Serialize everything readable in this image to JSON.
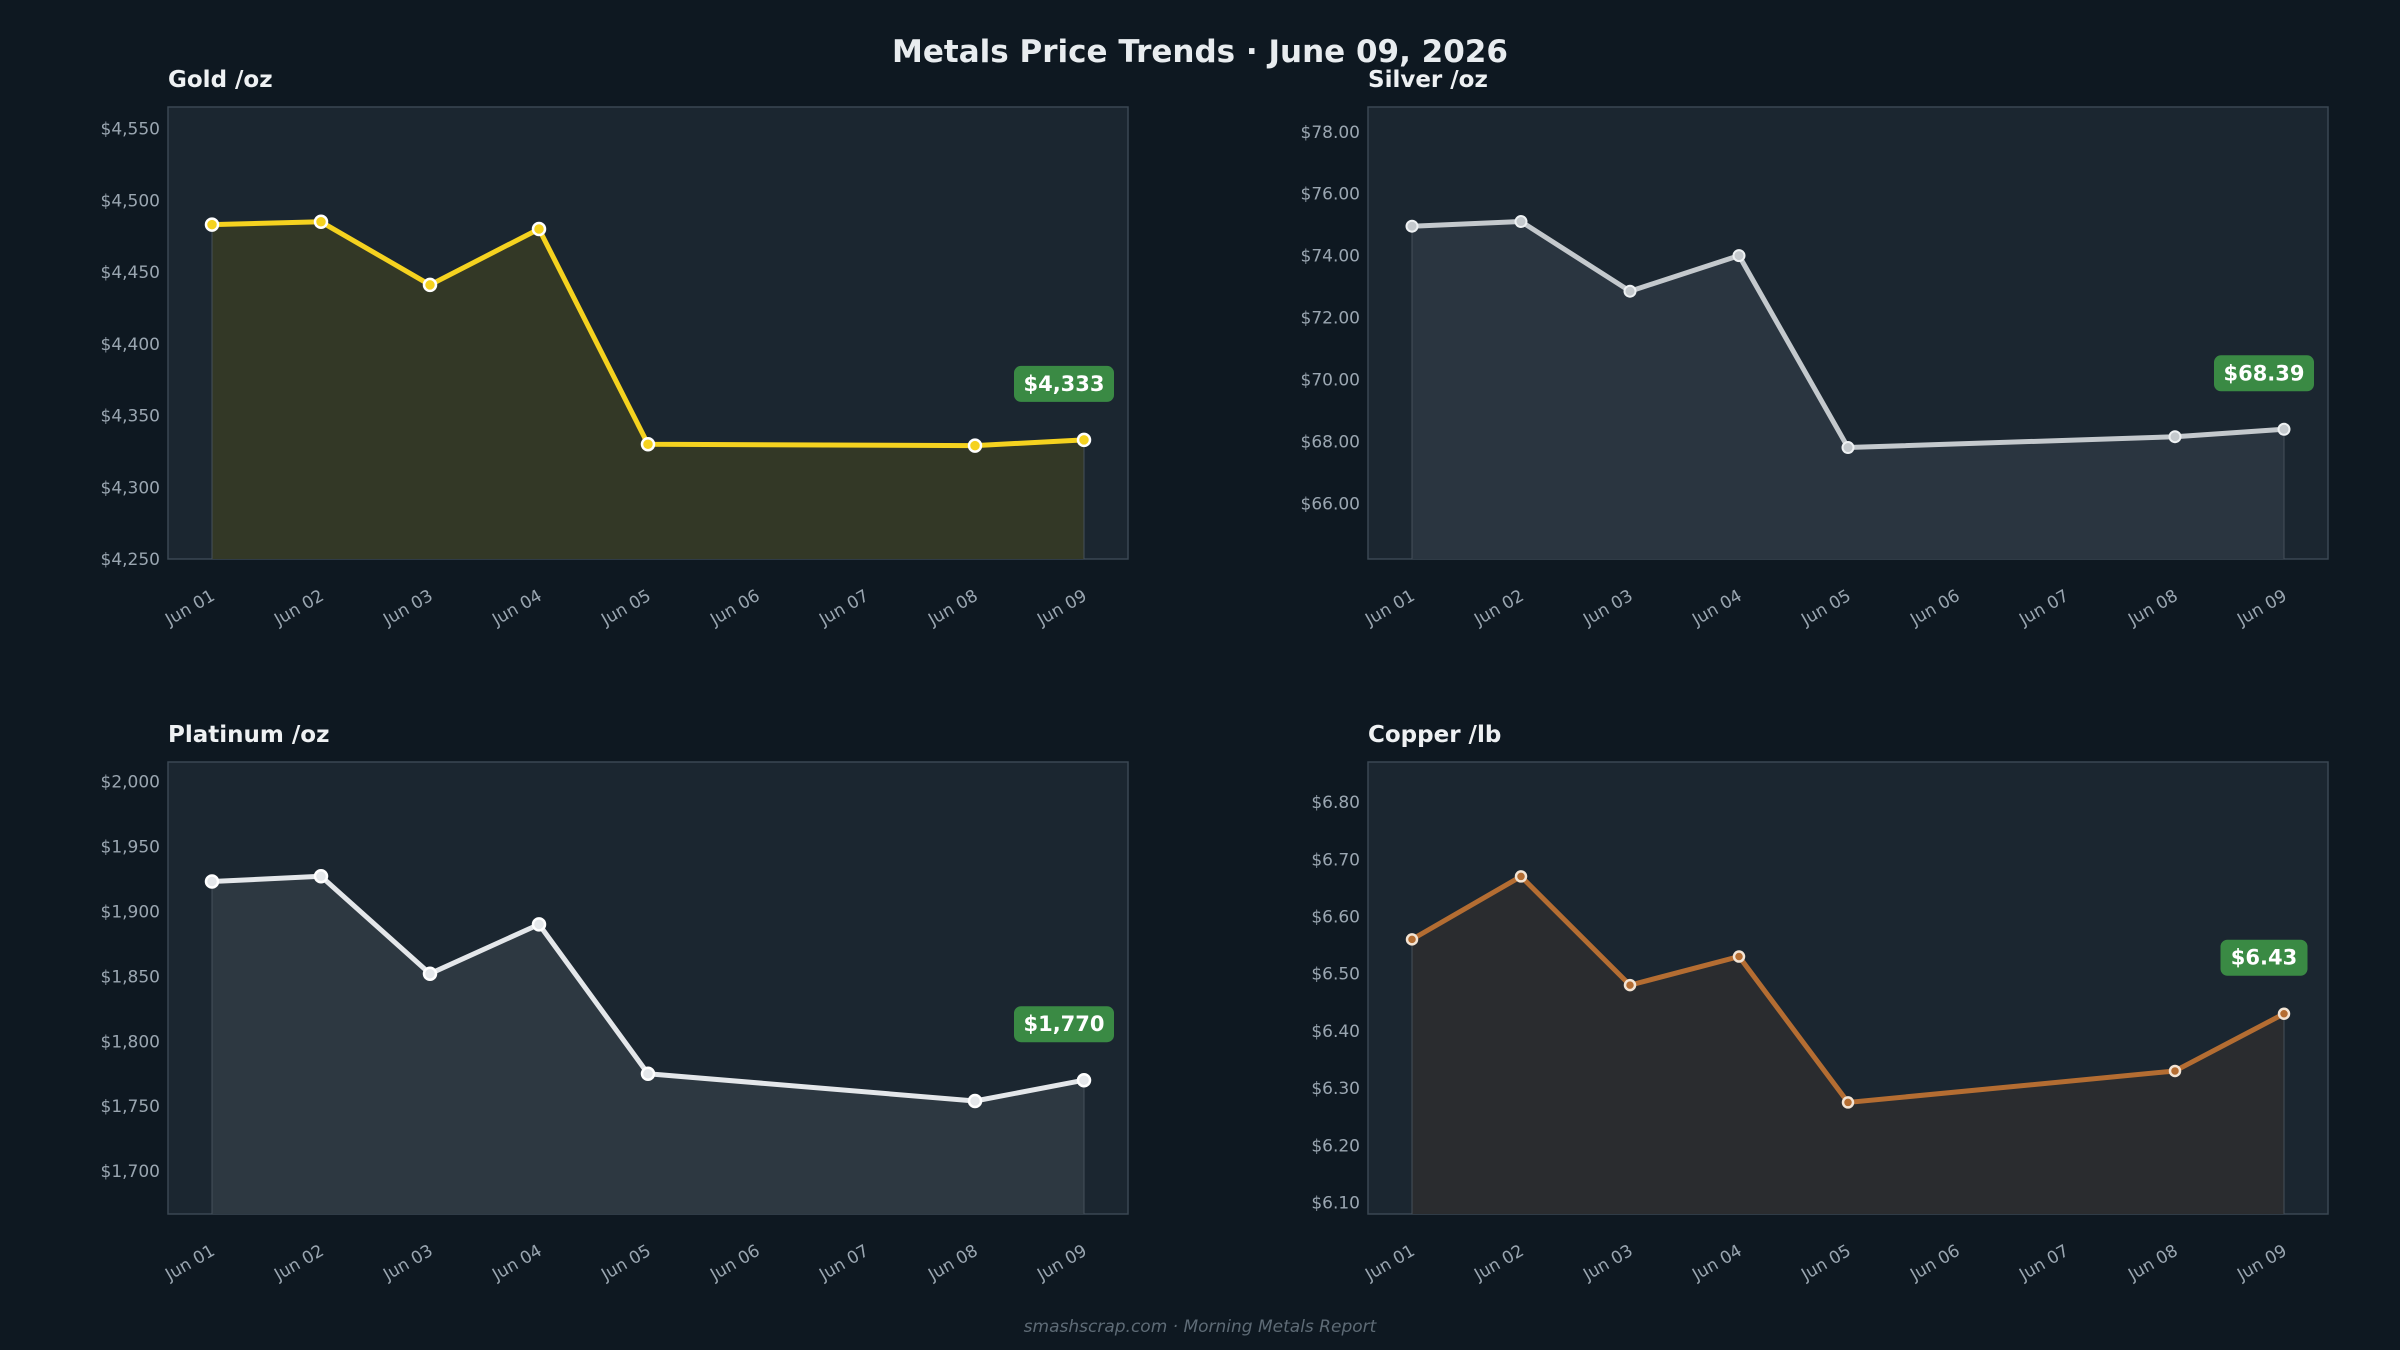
{
  "page": {
    "title": "Metals Price Trends  ·  June 09, 2026",
    "footer": "smashscrap.com  ·  Morning Metals Report"
  },
  "colors": {
    "background": "#0e1821",
    "panel": "#1b2630",
    "badge": "#3a8a44",
    "gold": "#f5d21f",
    "silver": "#c4c9cd",
    "platinum": "#e4e7ea",
    "copper": "#b46d32"
  },
  "chart_data": [
    {
      "type": "area",
      "title": "Gold  /oz",
      "categories": [
        "Jun 01",
        "Jun 02",
        "Jun 03",
        "Jun 04",
        "Jun 05",
        "Jun 06",
        "Jun 07",
        "Jun 08",
        "Jun 09"
      ],
      "x": [
        0,
        1,
        2,
        3,
        4,
        7,
        8
      ],
      "values": [
        4483,
        4485,
        4441,
        4480,
        4330,
        4329,
        4333
      ],
      "ylim": [
        4250,
        4565
      ],
      "yticks": [
        4250,
        4300,
        4350,
        4400,
        4450,
        4500,
        4550
      ],
      "ytick_labels": [
        "$4,250",
        "$4,300",
        "$4,350",
        "$4,400",
        "$4,450",
        "$4,500",
        "$4,550"
      ],
      "latest_label": "$4,333",
      "color": "#f5d21f",
      "fill": "#333826",
      "marker": "large",
      "grid": false
    },
    {
      "type": "area",
      "title": "Silver  /oz",
      "categories": [
        "Jun 01",
        "Jun 02",
        "Jun 03",
        "Jun 04",
        "Jun 05",
        "Jun 06",
        "Jun 07",
        "Jun 08",
        "Jun 09"
      ],
      "x": [
        0,
        1,
        2,
        3,
        4,
        7,
        8
      ],
      "values": [
        74.95,
        75.1,
        72.85,
        74.0,
        67.8,
        68.15,
        68.39
      ],
      "ylim": [
        64.2,
        78.8
      ],
      "yticks": [
        66,
        68,
        70,
        72,
        74,
        76,
        78
      ],
      "ytick_labels": [
        "$66.00",
        "$68.00",
        "$70.00",
        "$72.00",
        "$74.00",
        "$76.00",
        "$78.00"
      ],
      "latest_label": "$68.39",
      "color": "#c4c9cd",
      "fill": "#2a3540",
      "marker": "small",
      "grid": false
    },
    {
      "type": "area",
      "title": "Platinum  /oz",
      "categories": [
        "Jun 01",
        "Jun 02",
        "Jun 03",
        "Jun 04",
        "Jun 05",
        "Jun 06",
        "Jun 07",
        "Jun 08",
        "Jun 09"
      ],
      "x": [
        0,
        1,
        2,
        3,
        4,
        7,
        8
      ],
      "values": [
        1923,
        1927,
        1852,
        1890,
        1775,
        1754,
        1770
      ],
      "ylim": [
        1667,
        2015
      ],
      "yticks": [
        1700,
        1750,
        1800,
        1850,
        1900,
        1950,
        2000
      ],
      "ytick_labels": [
        "$1,700",
        "$1,750",
        "$1,800",
        "$1,850",
        "$1,900",
        "$1,950",
        "$2,000"
      ],
      "latest_label": "$1,770",
      "color": "#e4e7ea",
      "fill": "#2d3841",
      "marker": "large",
      "grid": false
    },
    {
      "type": "area",
      "title": "Copper  /lb",
      "categories": [
        "Jun 01",
        "Jun 02",
        "Jun 03",
        "Jun 04",
        "Jun 05",
        "Jun 06",
        "Jun 07",
        "Jun 08",
        "Jun 09"
      ],
      "x": [
        0,
        1,
        2,
        3,
        4,
        7,
        8
      ],
      "values": [
        6.56,
        6.67,
        6.48,
        6.53,
        6.275,
        6.33,
        6.43
      ],
      "ylim": [
        6.08,
        6.87
      ],
      "yticks": [
        6.1,
        6.2,
        6.3,
        6.4,
        6.5,
        6.6,
        6.7,
        6.8
      ],
      "ytick_labels": [
        "$6.10",
        "$6.20",
        "$6.30",
        "$6.40",
        "$6.50",
        "$6.60",
        "$6.70",
        "$6.80"
      ],
      "latest_label": "$6.43",
      "color": "#b46d32",
      "fill": "#2a2c2f",
      "marker": "ring",
      "grid": false
    }
  ]
}
